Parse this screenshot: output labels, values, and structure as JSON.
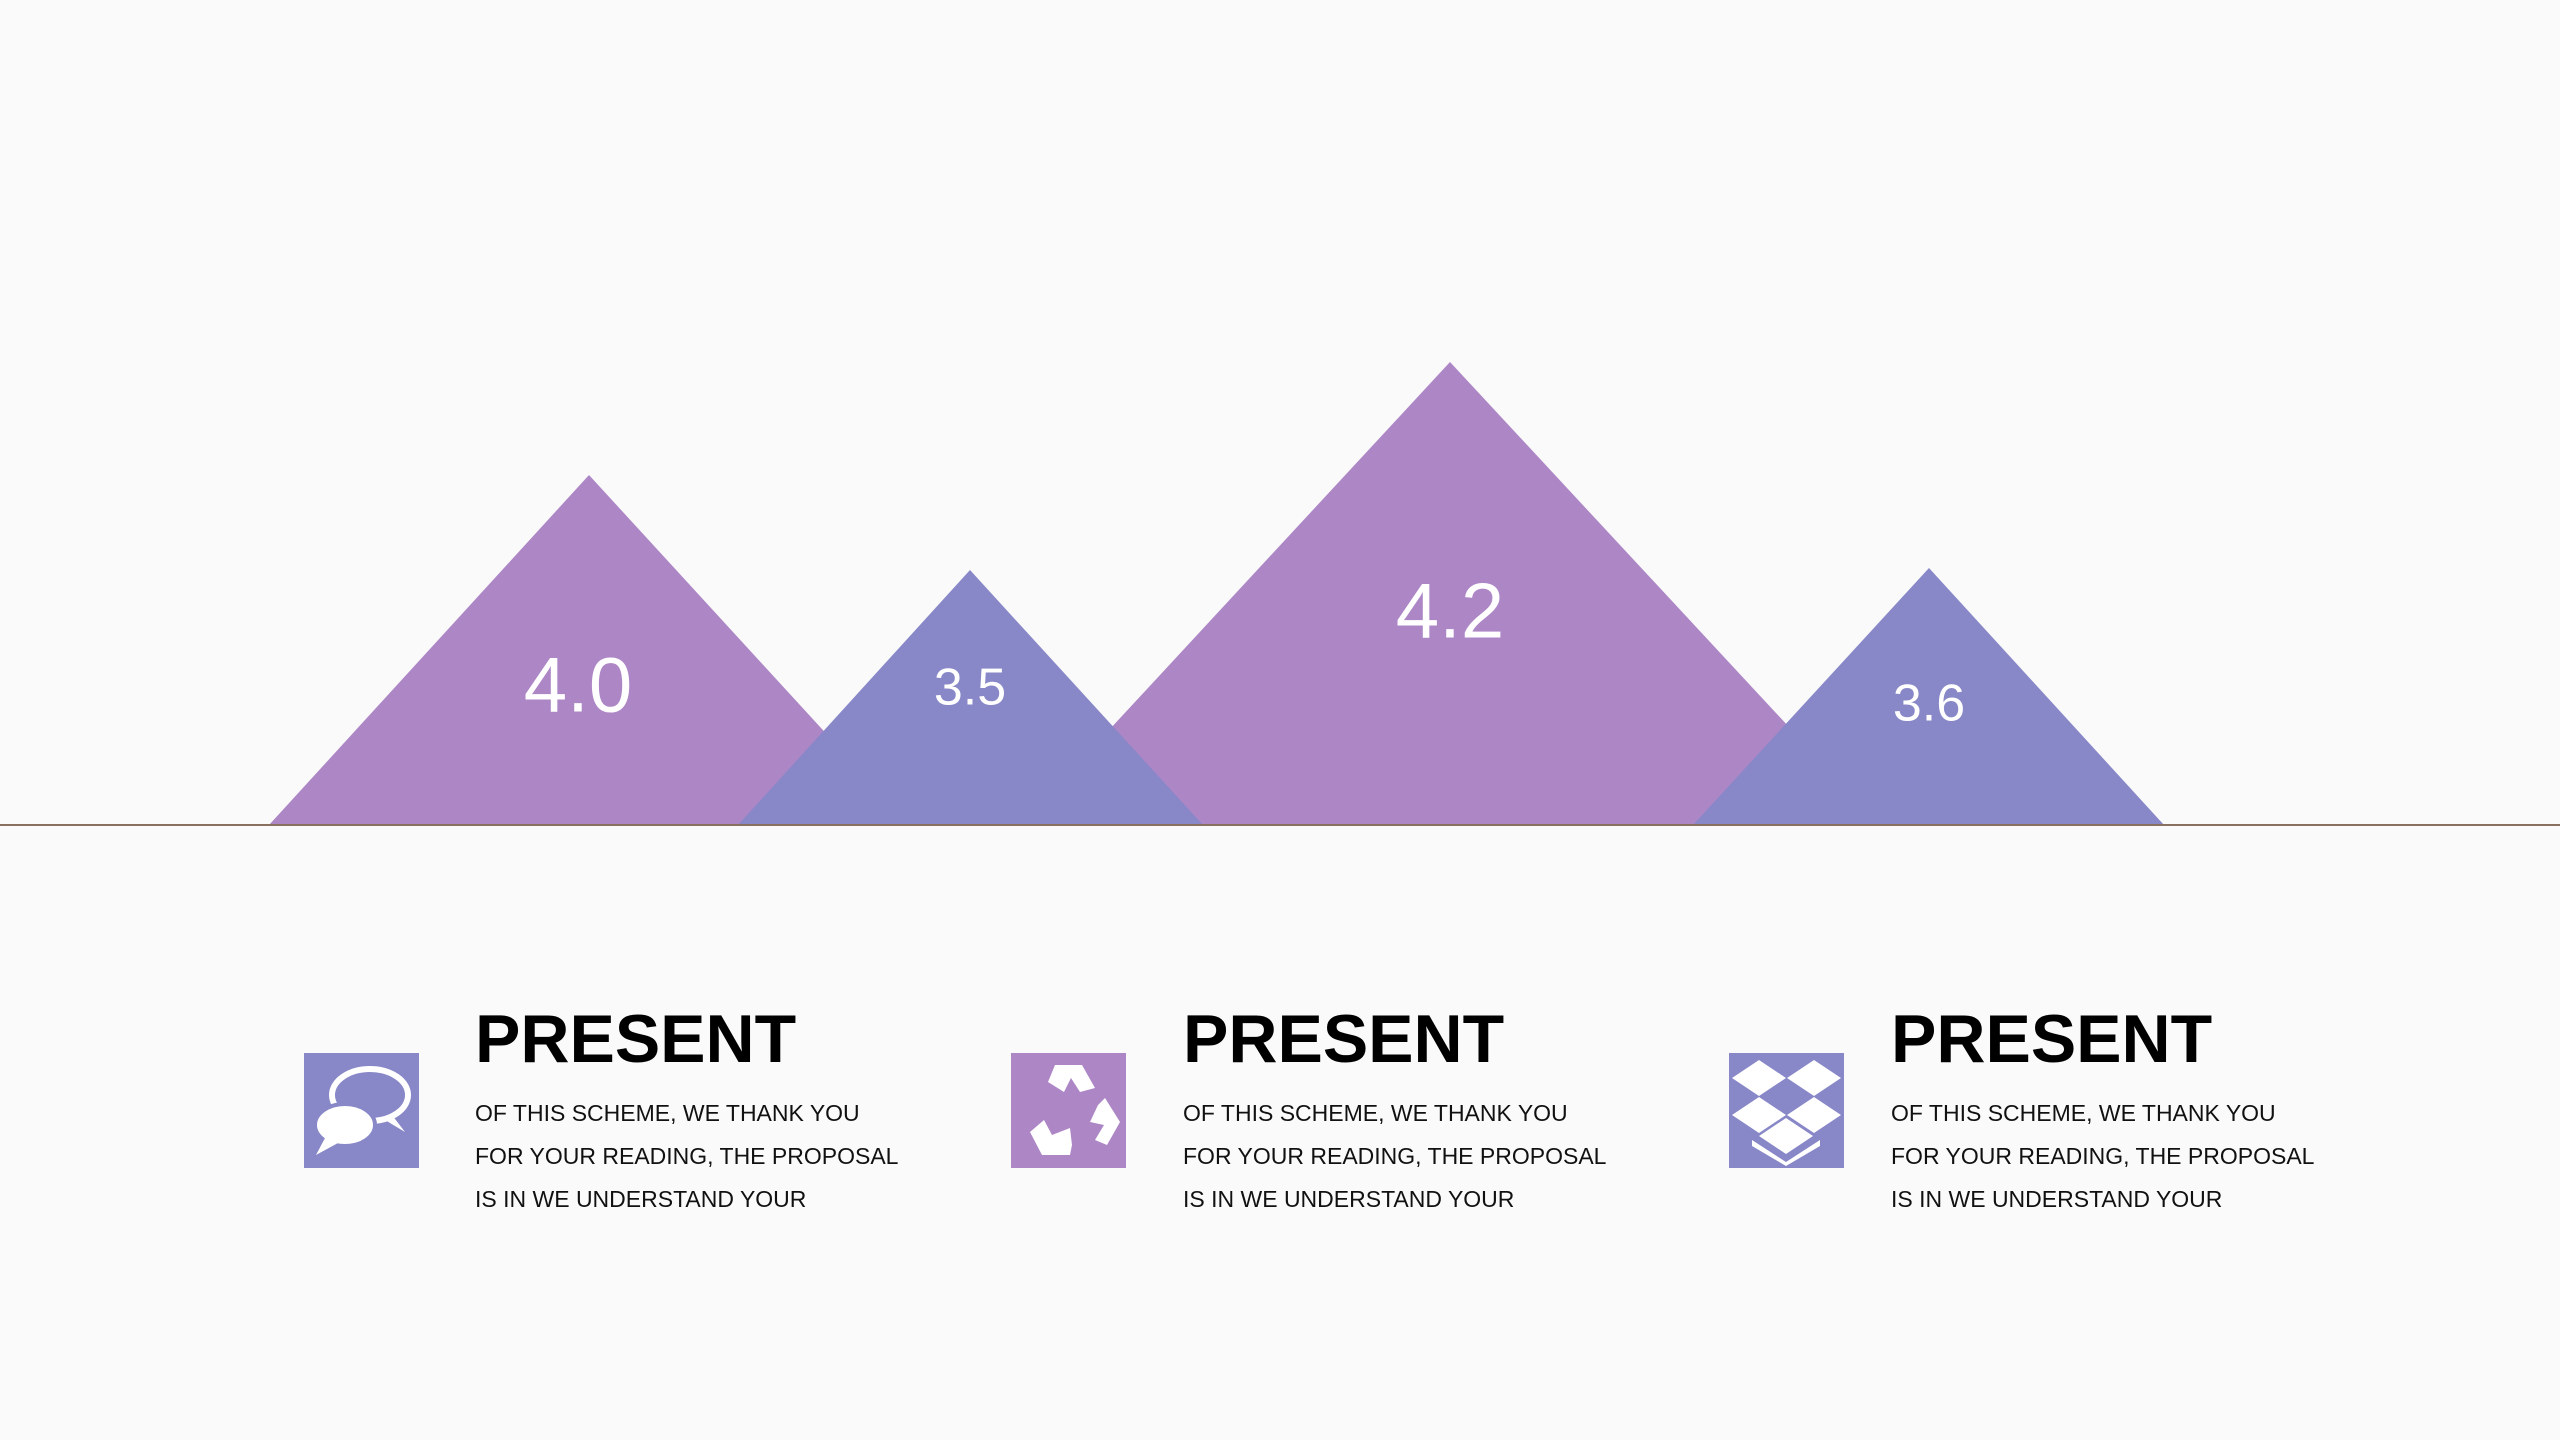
{
  "triangles": [
    {
      "label": "4.0"
    },
    {
      "label": "3.5"
    },
    {
      "label": "4.2"
    },
    {
      "label": "3.6"
    }
  ],
  "items": [
    {
      "title": "PRESENT",
      "lines": [
        "OF THIS SCHEME, WE THANK YOU",
        "FOR YOUR READING, THE PROPOSAL",
        "IS IN WE UNDERSTAND YOUR"
      ]
    },
    {
      "title": "PRESENT",
      "lines": [
        "OF THIS SCHEME, WE THANK YOU",
        "FOR YOUR READING, THE PROPOSAL",
        "IS IN WE UNDERSTAND YOUR"
      ]
    },
    {
      "title": "PRESENT",
      "lines": [
        "OF THIS SCHEME, WE THANK YOU",
        "FOR YOUR READING, THE PROPOSAL",
        "IS IN WE UNDERSTAND YOUR"
      ]
    }
  ]
}
